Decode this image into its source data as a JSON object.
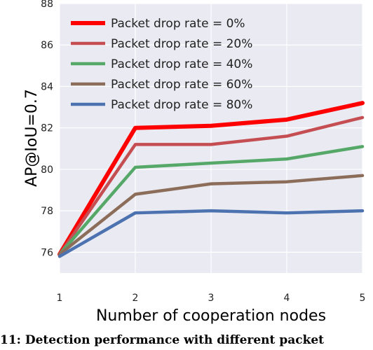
{
  "chart_data": {
    "type": "line",
    "xlabel": "Number of cooperation nodes",
    "ylabel": "AP@IoU=0.7",
    "x": [
      1,
      2,
      3,
      4,
      5
    ],
    "xlim": [
      1,
      5
    ],
    "ylim": [
      75,
      88
    ],
    "xticks": [
      "1",
      "2",
      "3",
      "4",
      "5"
    ],
    "yticks": [
      "76",
      "78",
      "80",
      "82",
      "84",
      "86",
      "88"
    ],
    "grid": true,
    "legend_position": "top-left",
    "series": [
      {
        "name": "Packet drop rate = 0%",
        "color": "#ff0000",
        "values": [
          75.9,
          82.0,
          82.1,
          82.4,
          83.2
        ]
      },
      {
        "name": "Packet drop rate = 20%",
        "color": "#c44e52",
        "values": [
          75.9,
          81.2,
          81.2,
          81.6,
          82.5
        ]
      },
      {
        "name": "Packet drop rate = 40%",
        "color": "#55a868",
        "values": [
          75.9,
          80.1,
          80.3,
          80.5,
          81.1
        ]
      },
      {
        "name": "Packet drop rate = 60%",
        "color": "#8c6d5a",
        "values": [
          75.9,
          78.8,
          79.3,
          79.4,
          79.7
        ]
      },
      {
        "name": "Packet drop rate = 80%",
        "color": "#4c72b0",
        "values": [
          75.8,
          77.9,
          78.0,
          77.9,
          78.0
        ]
      }
    ]
  },
  "caption": "11:  Detection performance with different packet"
}
